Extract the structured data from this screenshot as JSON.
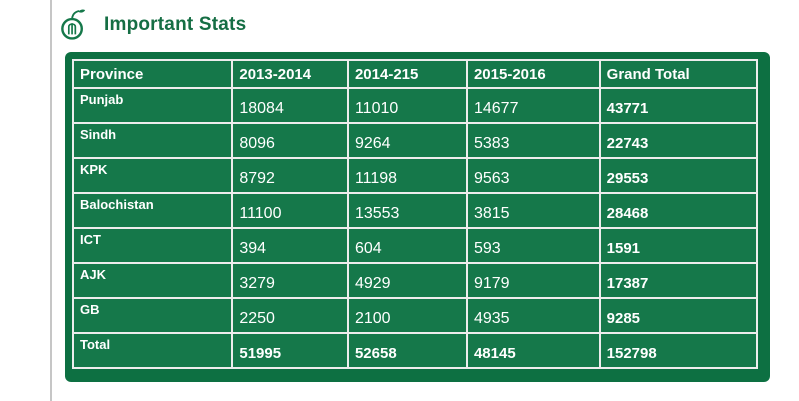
{
  "header": {
    "title": "Important Stats",
    "icon": "org-logo-icon"
  },
  "colors": {
    "title_green": "#156e44",
    "panel_green": "#0d7042",
    "cell_green": "#15784a",
    "table_border": "#ededed",
    "divider_gray": "#c6c6c6",
    "text_white": "#ffffff"
  },
  "stats_table": {
    "columns": [
      "Province",
      "2013-2014",
      "2014-215",
      "2015-2016",
      "Grand Total"
    ],
    "rows": [
      {
        "province": "Punjab",
        "values": [
          "18084",
          "11010",
          "14677",
          "43771"
        ],
        "is_total": false
      },
      {
        "province": "Sindh",
        "values": [
          "8096",
          "9264",
          "5383",
          "22743"
        ],
        "is_total": false
      },
      {
        "province": "KPK",
        "values": [
          "8792",
          "11198",
          "9563",
          "29553"
        ],
        "is_total": false
      },
      {
        "province": "Balochistan",
        "values": [
          "11100",
          "13553",
          "3815",
          "28468"
        ],
        "is_total": false
      },
      {
        "province": "ICT",
        "values": [
          "394",
          "604",
          "593",
          "1591"
        ],
        "is_total": false
      },
      {
        "province": "AJK",
        "values": [
          "3279",
          "4929",
          "9179",
          "17387"
        ],
        "is_total": false
      },
      {
        "province": "GB",
        "values": [
          "2250",
          "2100",
          "4935",
          "9285"
        ],
        "is_total": false
      },
      {
        "province": "Total",
        "values": [
          "51995",
          "52658",
          "48145",
          "152798"
        ],
        "is_total": true
      }
    ]
  }
}
